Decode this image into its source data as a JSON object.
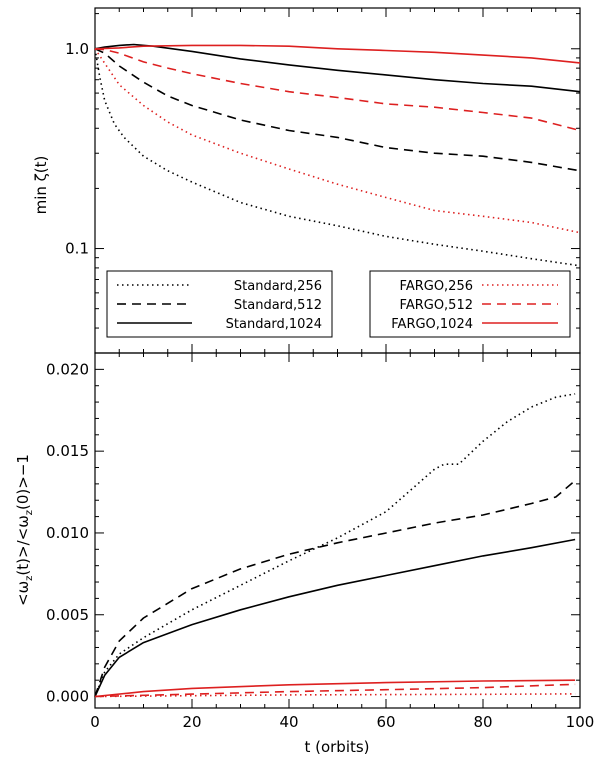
{
  "chart_data": [
    {
      "type": "line",
      "yscale": "log",
      "xlim": [
        0,
        100
      ],
      "ylim": [
        0.03,
        1.6
      ],
      "xlabel": "",
      "ylabel": "min ζ(t)",
      "xticks": [
        0,
        20,
        40,
        60,
        80,
        100
      ],
      "yticks": [
        0.1,
        1.0
      ],
      "ytick_labels": [
        "0.1",
        "1.0"
      ],
      "colors": {
        "standard": "#000000",
        "fargo": "#dd2020"
      },
      "legend": [
        {
          "box": "left",
          "items": [
            {
              "label": "Standard,256",
              "dash": "dotted",
              "color": "#000000"
            },
            {
              "label": "Standard,512",
              "dash": "dashed",
              "color": "#000000"
            },
            {
              "label": "Standard,1024",
              "dash": "solid",
              "color": "#000000"
            }
          ]
        },
        {
          "box": "right",
          "items": [
            {
              "label": "FARGO,256",
              "dash": "dotted",
              "color": "#dd2020"
            },
            {
              "label": "FARGO,512",
              "dash": "dashed",
              "color": "#dd2020"
            },
            {
              "label": "FARGO,1024",
              "dash": "solid",
              "color": "#dd2020"
            }
          ]
        }
      ],
      "series": [
        {
          "name": "Standard,256",
          "color": "#000000",
          "dash": "dotted",
          "x": [
            0,
            1,
            2,
            4,
            6,
            10,
            15,
            20,
            30,
            40,
            50,
            60,
            70,
            80,
            90,
            100
          ],
          "y": [
            1.0,
            0.72,
            0.55,
            0.42,
            0.36,
            0.29,
            0.245,
            0.215,
            0.17,
            0.145,
            0.13,
            0.115,
            0.105,
            0.097,
            0.089,
            0.082
          ]
        },
        {
          "name": "Standard,512",
          "color": "#000000",
          "dash": "dashed",
          "x": [
            0,
            2,
            5,
            10,
            15,
            20,
            30,
            40,
            50,
            60,
            70,
            80,
            90,
            100
          ],
          "y": [
            1.0,
            0.95,
            0.82,
            0.68,
            0.58,
            0.52,
            0.44,
            0.39,
            0.36,
            0.32,
            0.3,
            0.29,
            0.27,
            0.245
          ]
        },
        {
          "name": "Standard,1024",
          "color": "#000000",
          "dash": "solid",
          "x": [
            0,
            2,
            5,
            8,
            12,
            20,
            30,
            40,
            50,
            60,
            70,
            80,
            90,
            100
          ],
          "y": [
            1.0,
            1.02,
            1.04,
            1.05,
            1.03,
            0.97,
            0.89,
            0.83,
            0.78,
            0.74,
            0.7,
            0.67,
            0.65,
            0.61
          ]
        },
        {
          "name": "FARGO,256",
          "color": "#dd2020",
          "dash": "dotted",
          "x": [
            0,
            1,
            3,
            5,
            10,
            15,
            20,
            30,
            40,
            50,
            60,
            70,
            80,
            90,
            100
          ],
          "y": [
            1.0,
            0.92,
            0.78,
            0.66,
            0.52,
            0.43,
            0.37,
            0.3,
            0.25,
            0.21,
            0.18,
            0.155,
            0.145,
            0.135,
            0.12
          ]
        },
        {
          "name": "FARGO,512",
          "color": "#dd2020",
          "dash": "dashed",
          "x": [
            0,
            2,
            5,
            10,
            15,
            20,
            30,
            40,
            50,
            60,
            70,
            80,
            90,
            100
          ],
          "y": [
            1.0,
            0.99,
            0.95,
            0.86,
            0.8,
            0.75,
            0.67,
            0.61,
            0.57,
            0.53,
            0.51,
            0.48,
            0.45,
            0.39
          ]
        },
        {
          "name": "FARGO,1024",
          "color": "#dd2020",
          "dash": "solid",
          "x": [
            0,
            5,
            10,
            20,
            30,
            40,
            50,
            60,
            70,
            80,
            90,
            100
          ],
          "y": [
            1.0,
            1.01,
            1.03,
            1.04,
            1.04,
            1.03,
            1.0,
            0.98,
            0.96,
            0.93,
            0.9,
            0.85
          ]
        }
      ]
    },
    {
      "type": "line",
      "yscale": "linear",
      "xlim": [
        0,
        100
      ],
      "ylim": [
        -0.0007,
        0.021
      ],
      "xlabel": "t (orbits)",
      "ylabel": "<ωz(t)>/<ωz(0)>−1",
      "ylabel_parts": {
        "open": "<ω",
        "sub": "z",
        "mid": "(t)>/<ω",
        "sub2": "z",
        "close": "(0)>−1"
      },
      "xticks": [
        0,
        20,
        40,
        60,
        80,
        100
      ],
      "yticks": [
        0.0,
        0.005,
        0.01,
        0.015,
        0.02
      ],
      "ytick_labels": [
        "0.000",
        "0.005",
        "0.010",
        "0.015",
        "0.020"
      ],
      "series": [
        {
          "name": "Standard,256",
          "color": "#000000",
          "dash": "dotted",
          "x": [
            0,
            2,
            5,
            10,
            20,
            30,
            40,
            50,
            60,
            70,
            72,
            75,
            80,
            85,
            90,
            95,
            99
          ],
          "y": [
            0.0,
            0.0015,
            0.0026,
            0.0036,
            0.0053,
            0.0068,
            0.0083,
            0.0097,
            0.0113,
            0.0139,
            0.0142,
            0.0142,
            0.0156,
            0.0168,
            0.0177,
            0.0183,
            0.0185
          ]
        },
        {
          "name": "Standard,512",
          "color": "#000000",
          "dash": "dashed",
          "x": [
            0,
            2,
            5,
            10,
            20,
            30,
            40,
            50,
            60,
            70,
            80,
            90,
            95,
            99
          ],
          "y": [
            0.0,
            0.0018,
            0.0034,
            0.0048,
            0.0066,
            0.0078,
            0.0087,
            0.0094,
            0.01,
            0.0106,
            0.0111,
            0.0118,
            0.0122,
            0.0132
          ]
        },
        {
          "name": "Standard,1024",
          "color": "#000000",
          "dash": "solid",
          "x": [
            0,
            2,
            5,
            10,
            20,
            30,
            40,
            50,
            60,
            70,
            80,
            90,
            99
          ],
          "y": [
            0.0,
            0.0013,
            0.0024,
            0.0033,
            0.0044,
            0.0053,
            0.0061,
            0.0068,
            0.0074,
            0.008,
            0.0086,
            0.0091,
            0.0096
          ]
        },
        {
          "name": "FARGO,256",
          "color": "#dd2020",
          "dash": "dotted",
          "x": [
            0,
            20,
            40,
            60,
            80,
            99
          ],
          "y": [
            0.0,
            5e-05,
            0.0001,
            0.00012,
            0.00014,
            0.00016
          ]
        },
        {
          "name": "FARGO,512",
          "color": "#dd2020",
          "dash": "dashed",
          "x": [
            0,
            20,
            40,
            60,
            80,
            99
          ],
          "y": [
            0.0,
            0.00015,
            0.0003,
            0.00042,
            0.00055,
            0.00075
          ]
        },
        {
          "name": "FARGO,1024",
          "color": "#dd2020",
          "dash": "solid",
          "x": [
            0,
            10,
            20,
            40,
            60,
            80,
            99
          ],
          "y": [
            0.0,
            0.0003,
            0.0005,
            0.00072,
            0.00085,
            0.00095,
            0.001
          ]
        }
      ]
    }
  ]
}
